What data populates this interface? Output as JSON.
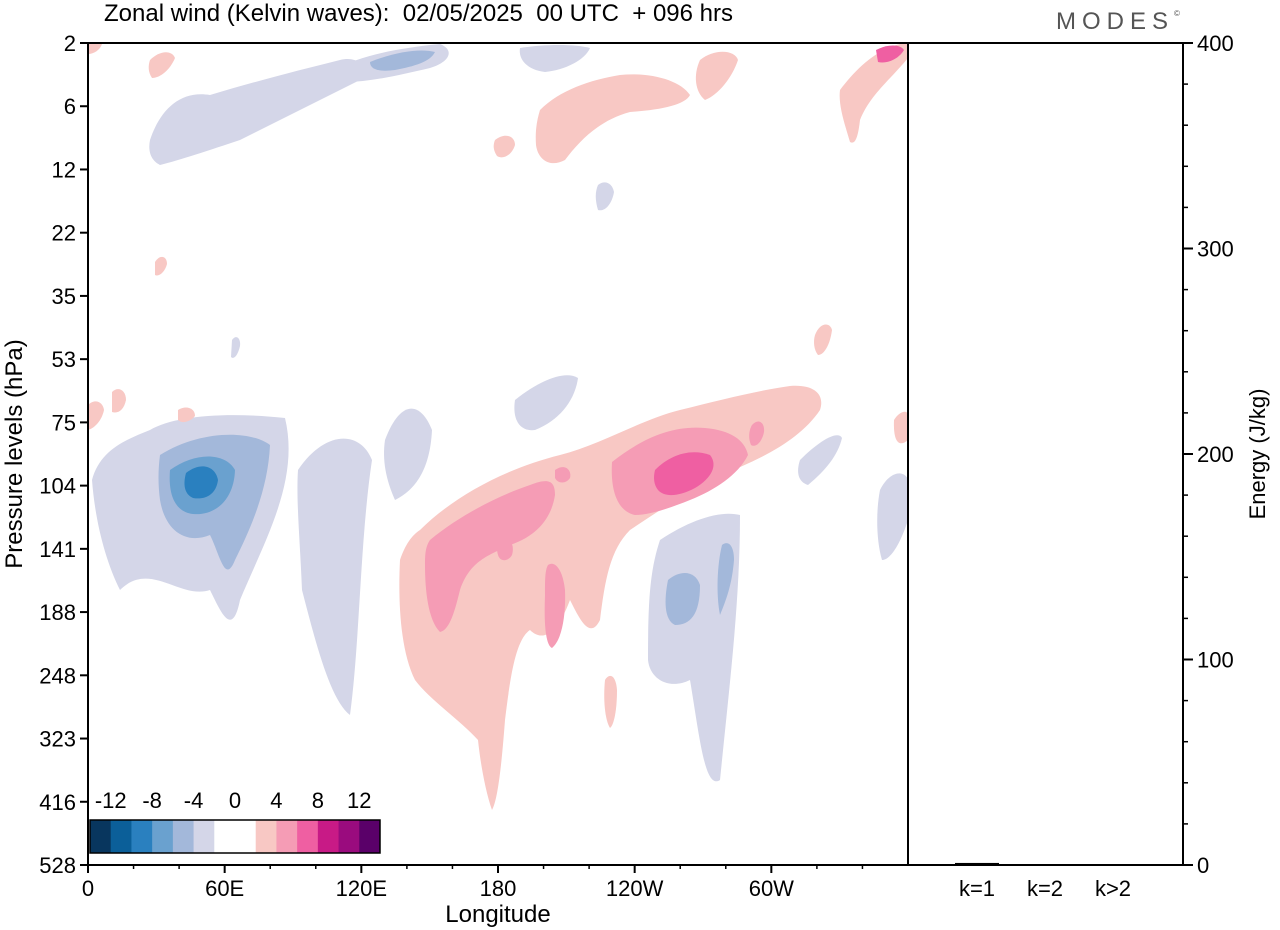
{
  "header": {
    "title": "Zonal wind (Kelvin waves):  02/05/2025  00 UTC  + 096 hrs",
    "brand": "MODES",
    "brand_mark": "©"
  },
  "colors": {
    "neg_12": "#08365e",
    "neg_10": "#0b5f99",
    "neg_8": "#2a80bf",
    "neg_6": "#6aa1cf",
    "neg_4": "#a3b8da",
    "neg_2": "#d4d6e8",
    "zero": "#ffffff",
    "pos_2": "#f8c8c4",
    "pos_4": "#f59cb5",
    "pos_6": "#ef5fa2",
    "pos_8": "#c81a86",
    "pos_10": "#9a0b7e",
    "pos_12": "#5a0069"
  },
  "chart_data": [
    {
      "type": "heatmap",
      "title": "Zonal wind (Kelvin waves):  02/05/2025  00 UTC  + 096 hrs",
      "xlabel": "Longitude",
      "ylabel": "Pressure levels (hPa)",
      "x_ticks": [
        "0",
        "60E",
        "120E",
        "180",
        "120W",
        "60W"
      ],
      "x_tick_values": [
        0,
        60,
        120,
        180,
        240,
        300
      ],
      "xlim": [
        0,
        360
      ],
      "y_ticks": [
        "2",
        "6",
        "12",
        "22",
        "35",
        "53",
        "75",
        "104",
        "141",
        "188",
        "248",
        "323",
        "416",
        "528"
      ],
      "colorbar_labels": [
        "-12",
        "-8",
        "-4",
        "0",
        "4",
        "8",
        "12"
      ],
      "colorbar_levels": [
        -14,
        -12,
        -10,
        -8,
        -6,
        -4,
        -2,
        2,
        4,
        6,
        8,
        10,
        12,
        14
      ],
      "features": [
        {
          "sign": "negative",
          "center_lon": 50,
          "center_level": "104",
          "peak": -10
        },
        {
          "sign": "negative",
          "center_lon": 260,
          "center_level": "188",
          "peak": -6
        },
        {
          "sign": "positive",
          "center_lon": 170,
          "center_level": "141",
          "peak": 6
        },
        {
          "sign": "positive",
          "center_lon": 255,
          "center_level": "104",
          "peak": 8
        },
        {
          "sign": "negative",
          "center_lon": 75,
          "center_level": "6",
          "peak": -4
        },
        {
          "sign": "positive",
          "center_lon": 230,
          "center_level": "6",
          "peak": 2
        }
      ]
    },
    {
      "type": "bar",
      "ylabel": "Energy (J/kg)",
      "categories": [
        "k=1",
        "k=2",
        "k>2"
      ],
      "values": [
        1,
        0.3,
        0.2
      ],
      "ylim": [
        0,
        400
      ],
      "y_ticks": [
        "0",
        "100",
        "200",
        "300",
        "400"
      ]
    }
  ]
}
